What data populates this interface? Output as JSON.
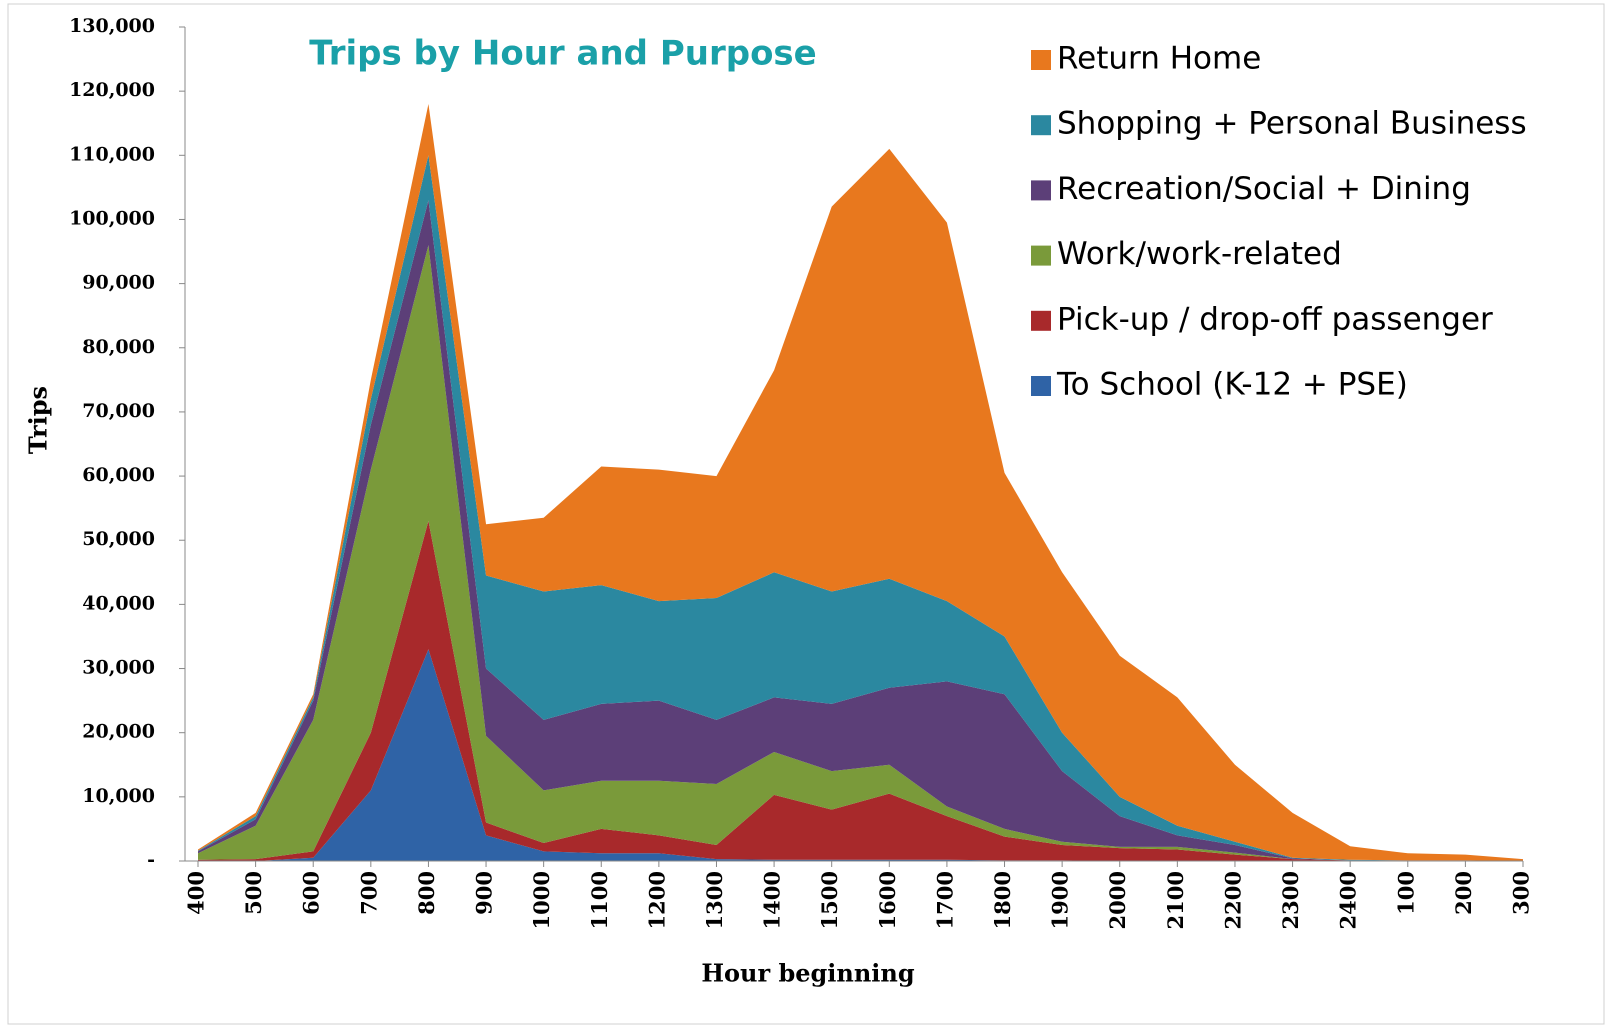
{
  "chart_data": {
    "type": "stacked_area",
    "title": "Trips by Hour and Purpose",
    "xlabel": "Hour beginning",
    "ylabel": "Trips",
    "categories": [
      "400",
      "500",
      "600",
      "700",
      "800",
      "900",
      "1000",
      "1100",
      "1200",
      "1300",
      "1400",
      "1500",
      "1600",
      "1700",
      "1800",
      "1900",
      "2000",
      "2100",
      "2200",
      "2300",
      "2400",
      "100",
      "200",
      "300"
    ],
    "series": [
      {
        "name": "To School (K-12 + PSE)",
        "color": "#2f63a6",
        "values": [
          0,
          0,
          500,
          11000,
          33000,
          4000,
          1500,
          1200,
          1200,
          300,
          200,
          200,
          200,
          200,
          100,
          100,
          0,
          0,
          0,
          0,
          0,
          0,
          0,
          0
        ]
      },
      {
        "name": "Pick-up / drop-off passenger",
        "color": "#a8292b",
        "values": [
          200,
          300,
          1000,
          9000,
          20000,
          2000,
          1300,
          3800,
          2800,
          2200,
          10100,
          7800,
          10300,
          6800,
          3700,
          2400,
          2000,
          1800,
          1000,
          300,
          100,
          0,
          0,
          0
        ]
      },
      {
        "name": "Work/work-related",
        "color": "#7a9a3a",
        "values": [
          1000,
          5200,
          20500,
          41000,
          43000,
          13500,
          8200,
          7500,
          8500,
          9500,
          6700,
          6000,
          4500,
          1500,
          1200,
          500,
          200,
          400,
          300,
          0,
          0,
          0,
          0,
          0
        ]
      },
      {
        "name": "Recreation/Social + Dining",
        "color": "#5c3f78",
        "values": [
          300,
          1000,
          3000,
          7000,
          7000,
          10500,
          11000,
          12000,
          12500,
          10000,
          8500,
          10500,
          12000,
          19500,
          21000,
          11000,
          4800,
          1800,
          1200,
          100,
          0,
          100,
          100,
          0
        ]
      },
      {
        "name": "Shopping + Personal Business",
        "color": "#2b88a0",
        "values": [
          100,
          500,
          500,
          4000,
          7000,
          14500,
          20000,
          18500,
          15500,
          19000,
          19500,
          17500,
          17000,
          12500,
          9000,
          6000,
          3000,
          1500,
          500,
          100,
          100,
          0,
          0,
          0
        ]
      },
      {
        "name": "Return Home",
        "color": "#e8781e",
        "values": [
          200,
          500,
          500,
          3000,
          8000,
          8000,
          11500,
          18500,
          20500,
          19000,
          31500,
          60000,
          67000,
          59000,
          25500,
          25000,
          22000,
          20000,
          12000,
          7000,
          2100,
          1100,
          900,
          300
        ]
      }
    ],
    "ylim": [
      0,
      130000
    ],
    "yticks": [
      {
        "value": 0,
        "label": "-"
      },
      {
        "value": 10000,
        "label": "10,000"
      },
      {
        "value": 20000,
        "label": "20,000"
      },
      {
        "value": 30000,
        "label": "30,000"
      },
      {
        "value": 40000,
        "label": "40,000"
      },
      {
        "value": 50000,
        "label": "50,000"
      },
      {
        "value": 60000,
        "label": "60,000"
      },
      {
        "value": 70000,
        "label": "70,000"
      },
      {
        "value": 80000,
        "label": "80,000"
      },
      {
        "value": 90000,
        "label": "90,000"
      },
      {
        "value": 100000,
        "label": "100,000"
      },
      {
        "value": 110000,
        "label": "110,000"
      },
      {
        "value": 120000,
        "label": "120,000"
      },
      {
        "value": 130000,
        "label": "130,000"
      }
    ],
    "legend": "upper right"
  }
}
